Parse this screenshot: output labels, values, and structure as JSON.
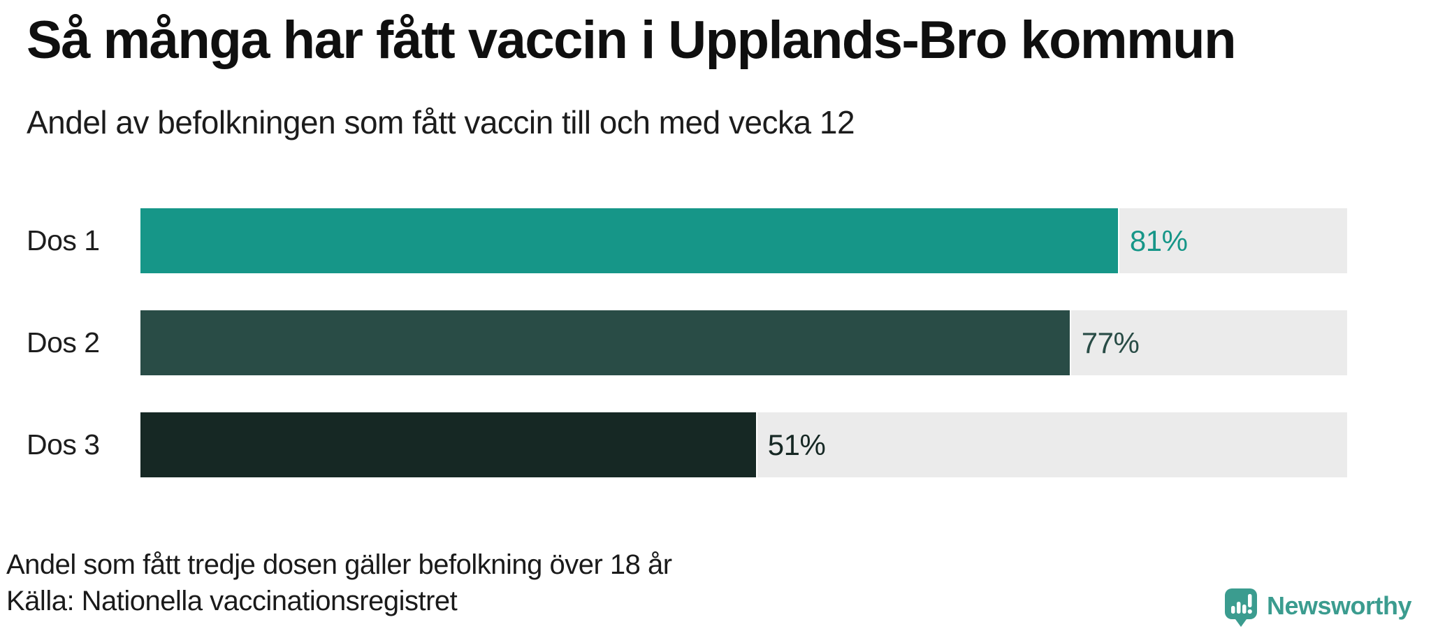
{
  "chart_data": {
    "type": "bar",
    "orientation": "horizontal",
    "title": "Så många har fått vaccin i Upplands-Bro kommun",
    "subtitle": "Andel av befolkningen som fått vaccin till och med vecka 12",
    "categories": [
      "Dos 1",
      "Dos 2",
      "Dos 3"
    ],
    "values": [
      81,
      77,
      51
    ],
    "value_labels": [
      "81%",
      "77%",
      "51%"
    ],
    "unit": "%",
    "xlim": [
      0,
      100
    ],
    "grid": false,
    "legend": "none",
    "bar_colors": [
      "#169688",
      "#294C46",
      "#162824"
    ],
    "track_color": "#EBEBEB",
    "note": "Andel som fått tredje dosen gäller befolkning över 18 år",
    "source": "Källa: Nationella vaccinationsregistret"
  },
  "logo": {
    "text": "Newsworthy",
    "color": "#3B9C8F",
    "icon": "newsworthy-speech-bubble-chart-icon"
  }
}
